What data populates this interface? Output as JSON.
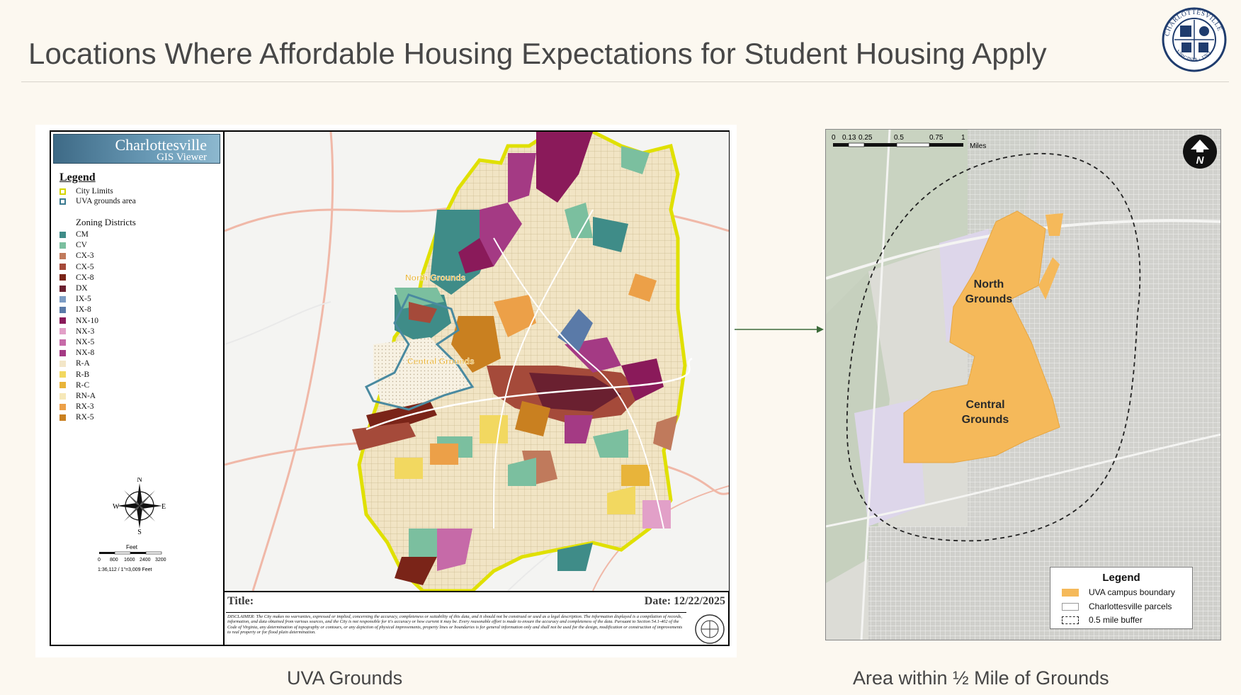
{
  "slide": {
    "title": "Locations Where Affordable Housing Expectations for Student Housing Apply",
    "seal_text": "CHARLOTTESVILLE VIRGINIA 1762"
  },
  "left_map": {
    "banner_line1": "Charlottesville",
    "banner_line2": "GIS Viewer",
    "legend_title": "Legend",
    "legend_items": [
      {
        "label": "City Limits",
        "color": "#e8e800"
      },
      {
        "label": "UVA grounds area",
        "color": "#4a8aa0"
      }
    ],
    "zoning_title": "Zoning Districts",
    "zones": [
      {
        "code": "CM",
        "color": "#3f8c88"
      },
      {
        "code": "CV",
        "color": "#7bbf9f"
      },
      {
        "code": "CX-3",
        "color": "#c07a5c"
      },
      {
        "code": "CX-5",
        "color": "#a54a3a"
      },
      {
        "code": "CX-8",
        "color": "#7a2418"
      },
      {
        "code": "DX",
        "color": "#6a2030"
      },
      {
        "code": "IX-5",
        "color": "#7c9cc4"
      },
      {
        "code": "IX-8",
        "color": "#5a7aa8"
      },
      {
        "code": "NX-10",
        "color": "#8a1a5a"
      },
      {
        "code": "NX-3",
        "color": "#e2a0c8"
      },
      {
        "code": "NX-5",
        "color": "#c66aa8"
      },
      {
        "code": "NX-8",
        "color": "#a43a84"
      },
      {
        "code": "R-A",
        "color": "#f3e6c8"
      },
      {
        "code": "R-B",
        "color": "#f2d860"
      },
      {
        "code": "R-C",
        "color": "#e8b43a"
      },
      {
        "code": "RN-A",
        "color": "#f6e8b8"
      },
      {
        "code": "RX-3",
        "color": "#eca048"
      },
      {
        "code": "RX-5",
        "color": "#c98020"
      }
    ],
    "north_label": "North Grounds",
    "central_label": "Central Grounds",
    "compass": {
      "n": "N",
      "s": "S",
      "e": "E",
      "w": "W"
    },
    "scale": {
      "unit": "Feet",
      "ticks": [
        "0",
        "800",
        "1600",
        "2400",
        "3200"
      ],
      "ratio": "1:36,112 / 1\"=3,009 Feet"
    },
    "title_label": "Title:",
    "date_label": "Date: 12/22/2025",
    "disclaimer": "DISCLAIMER: The City makes no warranties, expressed or implied, concerning the accuracy, completeness or suitability of this data, and it should not be construed or used as a legal description. The information displayed is a compilation of records, information, and data obtained from various sources, and the City is not responsible for it's accuracy or how current it may be. Every reasonable effort is made to ensure the accuracy and completeness of the data. Pursuant to Section 54.1-402 of the Code of Virginia, any determination of topography or contours, or any depiction of physical improvements, property lines or boundaries is for general information only and shall not be used for the design, modification or construction of improvements to real property or for flood plain determination.",
    "caption": "UVA Grounds"
  },
  "right_map": {
    "scale_ticks": [
      "0",
      "0.13",
      "0.25",
      "0.5",
      "0.75",
      "1"
    ],
    "scale_unit": "Miles",
    "north_label": "North\nGrounds",
    "central_label": "Central\nGrounds",
    "legend_title": "Legend",
    "legend_items": [
      {
        "label": "UVA campus boundary",
        "color": "#f5b95a"
      },
      {
        "label": "Charlottesville parcels",
        "color": "#ffffff"
      },
      {
        "label": "0.5 mile buffer",
        "color": "#ffffff"
      }
    ],
    "caption": "Area within ½ Mile of Grounds"
  }
}
